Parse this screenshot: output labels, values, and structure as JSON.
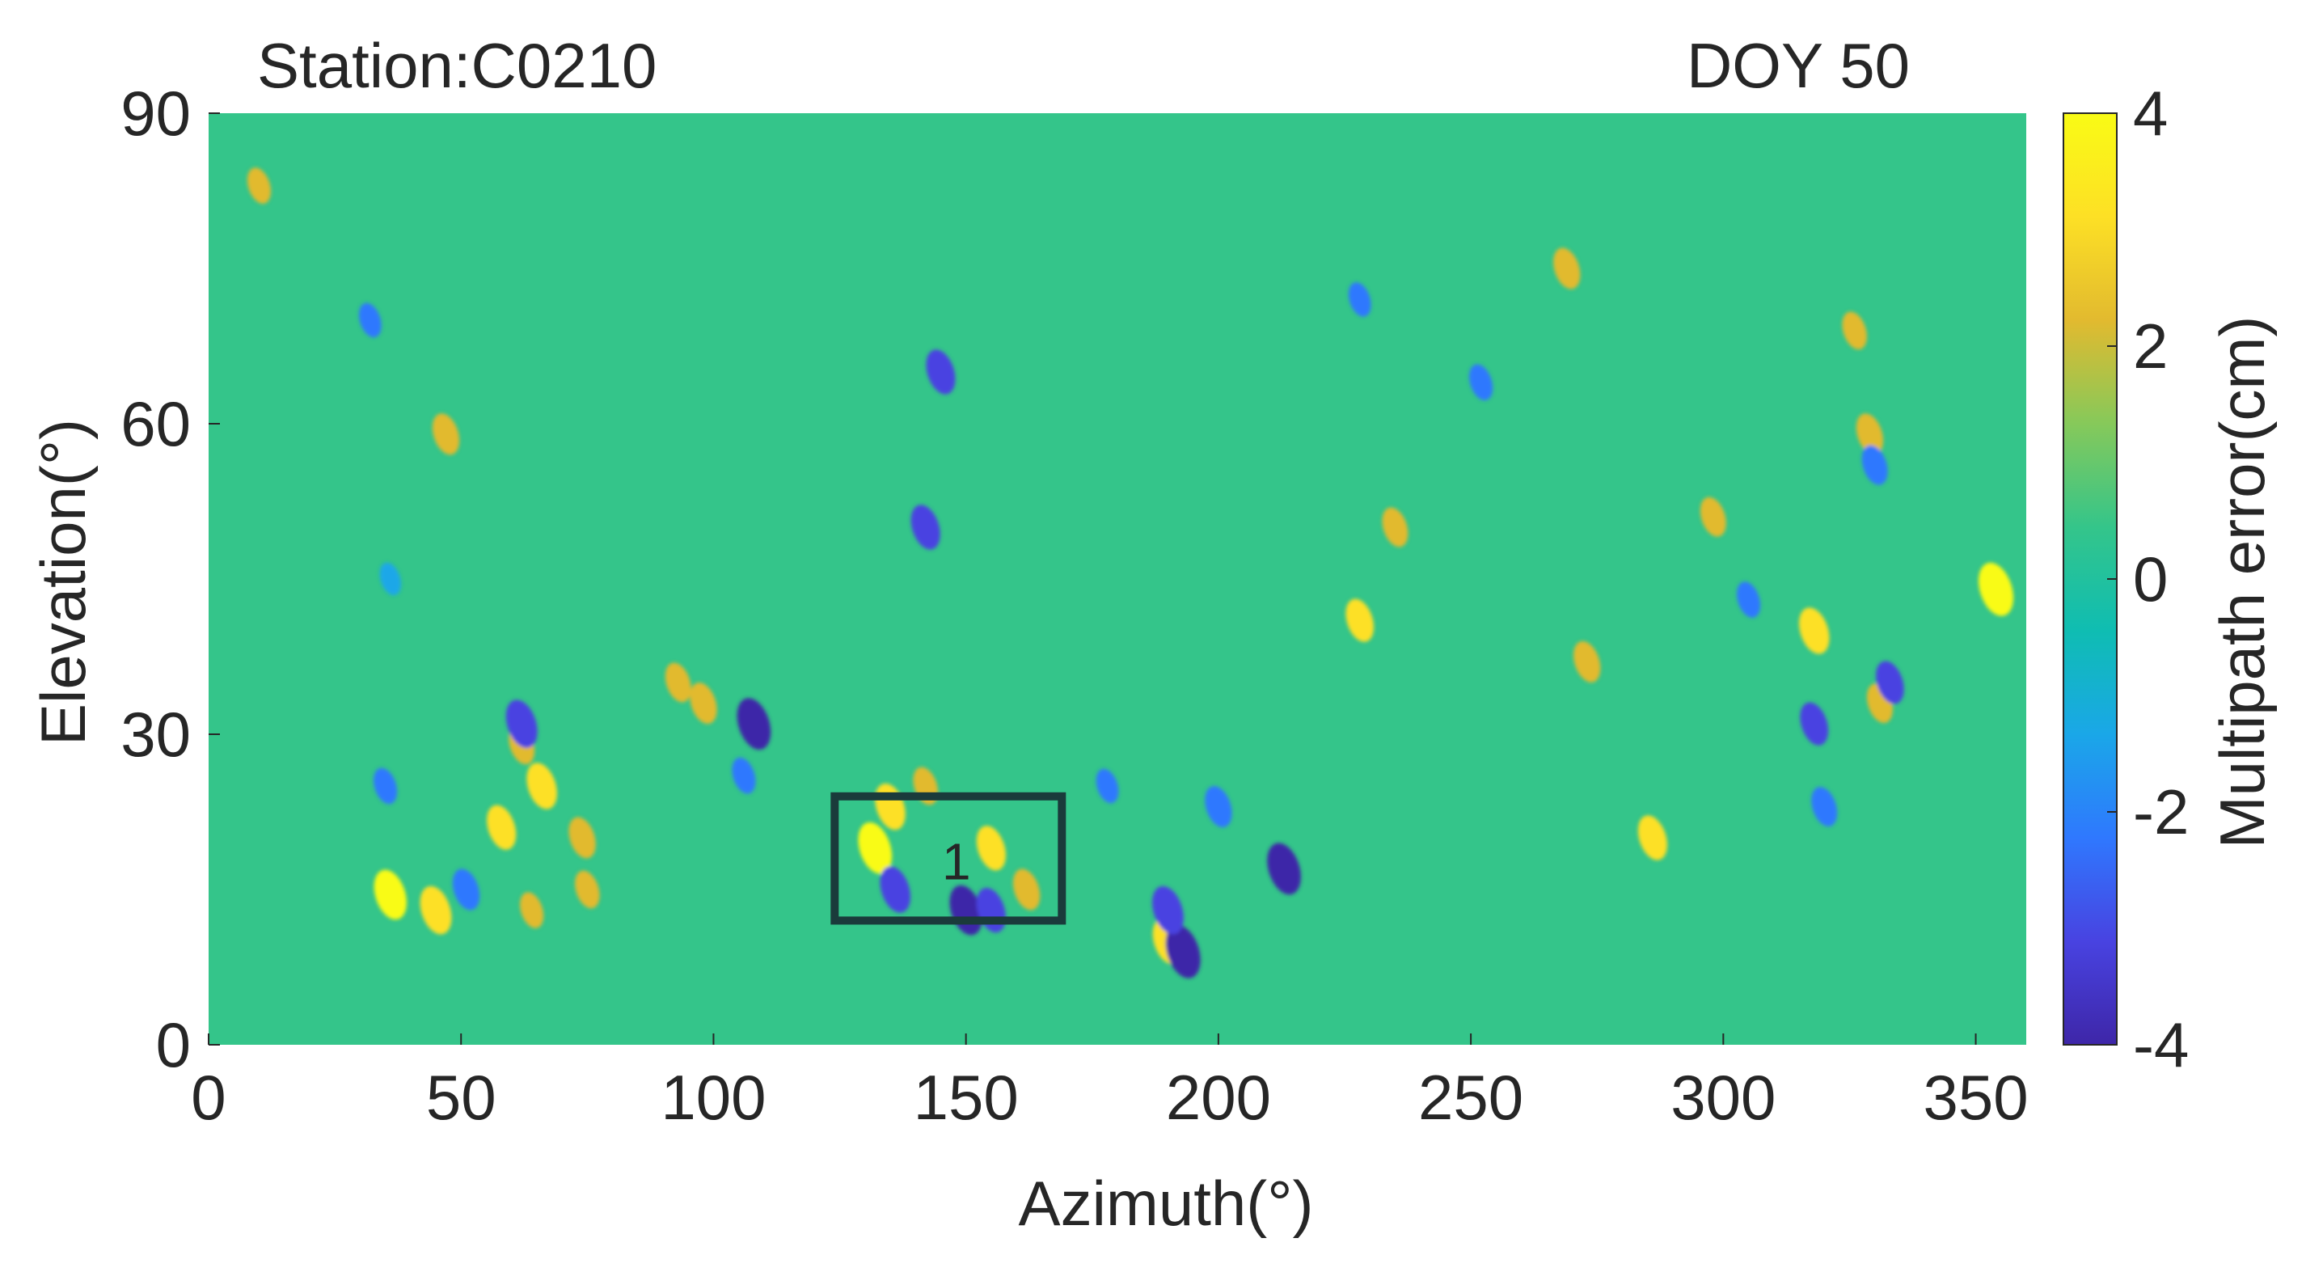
{
  "chart_data": {
    "type": "heatmap",
    "title_left": "Station:C0210",
    "title_right": "DOY 50",
    "xlabel": "Azimuth(°)",
    "ylabel": "Elevation(°)",
    "xlim": [
      0,
      360
    ],
    "ylim": [
      0,
      90
    ],
    "xticks": [
      0,
      50,
      100,
      150,
      200,
      250,
      300,
      350
    ],
    "yticks": [
      0,
      30,
      60,
      90
    ],
    "colorbar": {
      "label": "Multipath error(cm)",
      "clim": [
        -4,
        4
      ],
      "ticks": [
        -4,
        -2,
        0,
        2,
        4
      ],
      "colors": [
        "#3e26a8",
        "#4843e1",
        "#2f78fe",
        "#1aa7e8",
        "#0fbdb2",
        "#34c58a",
        "#86c95a",
        "#e2ba2f",
        "#fde025",
        "#f9fb15"
      ]
    },
    "background_value": 0,
    "blobs": [
      {
        "az": 36,
        "el": 14.5,
        "v": 3.6
      },
      {
        "az": 45,
        "el": 13,
        "v": 3.4
      },
      {
        "az": 58,
        "el": 21,
        "v": 3.0
      },
      {
        "az": 66,
        "el": 25,
        "v": 3.2
      },
      {
        "az": 62,
        "el": 29,
        "v": 2.4
      },
      {
        "az": 74,
        "el": 20,
        "v": 2.6
      },
      {
        "az": 75,
        "el": 15,
        "v": 2.2
      },
      {
        "az": 64,
        "el": 13,
        "v": 2.0
      },
      {
        "az": 47,
        "el": 59,
        "v": 2.6
      },
      {
        "az": 10,
        "el": 83,
        "v": 2.0
      },
      {
        "az": 93,
        "el": 35,
        "v": 2.4
      },
      {
        "az": 98,
        "el": 33,
        "v": 2.6
      },
      {
        "az": 108,
        "el": 31,
        "v": -3.8
      },
      {
        "az": 62,
        "el": 31,
        "v": -3.4
      },
      {
        "az": 51,
        "el": 15,
        "v": -2.6
      },
      {
        "az": 132,
        "el": 19,
        "v": 3.8
      },
      {
        "az": 135,
        "el": 23,
        "v": 3.2
      },
      {
        "az": 155,
        "el": 19,
        "v": 3.0
      },
      {
        "az": 162,
        "el": 15,
        "v": 2.6
      },
      {
        "az": 142,
        "el": 25,
        "v": 2.2
      },
      {
        "az": 136,
        "el": 15,
        "v": -3.2
      },
      {
        "az": 150,
        "el": 13,
        "v": -3.6
      },
      {
        "az": 155,
        "el": 13,
        "v": -3.0
      },
      {
        "az": 145,
        "el": 65,
        "v": -3.0
      },
      {
        "az": 142,
        "el": 50,
        "v": -3.0
      },
      {
        "az": 190,
        "el": 10,
        "v": 3.2
      },
      {
        "az": 193,
        "el": 9,
        "v": -4.0
      },
      {
        "az": 190,
        "el": 13,
        "v": -3.4
      },
      {
        "az": 213,
        "el": 17,
        "v": -3.8
      },
      {
        "az": 200,
        "el": 23,
        "v": -2.6
      },
      {
        "az": 228,
        "el": 41,
        "v": 2.8
      },
      {
        "az": 235,
        "el": 50,
        "v": 2.4
      },
      {
        "az": 269,
        "el": 75,
        "v": 2.6
      },
      {
        "az": 273,
        "el": 37,
        "v": 2.6
      },
      {
        "az": 286,
        "el": 20,
        "v": 3.0
      },
      {
        "az": 298,
        "el": 51,
        "v": 2.4
      },
      {
        "az": 318,
        "el": 40,
        "v": 3.2
      },
      {
        "az": 326,
        "el": 69,
        "v": 2.2
      },
      {
        "az": 329,
        "el": 59,
        "v": 2.6
      },
      {
        "az": 331,
        "el": 33,
        "v": 2.4
      },
      {
        "az": 354,
        "el": 44,
        "v": 4.0
      },
      {
        "az": 320,
        "el": 23,
        "v": -2.4
      },
      {
        "az": 318,
        "el": 31,
        "v": -2.8
      },
      {
        "az": 333,
        "el": 35,
        "v": -2.8
      },
      {
        "az": 330,
        "el": 56,
        "v": -2.4
      },
      {
        "az": 305,
        "el": 43,
        "v": -2.0
      },
      {
        "az": 228,
        "el": 72,
        "v": -1.8
      },
      {
        "az": 252,
        "el": 64,
        "v": -2.0
      },
      {
        "az": 32,
        "el": 70,
        "v": -1.8
      },
      {
        "az": 36,
        "el": 45,
        "v": -1.6
      },
      {
        "az": 35,
        "el": 25,
        "v": -2.0
      },
      {
        "az": 106,
        "el": 26,
        "v": -2.0
      },
      {
        "az": 178,
        "el": 25,
        "v": -1.8
      }
    ],
    "annotations": [
      {
        "label": "1",
        "az_range": [
          124,
          169
        ],
        "el_range": [
          12,
          24
        ]
      }
    ]
  }
}
